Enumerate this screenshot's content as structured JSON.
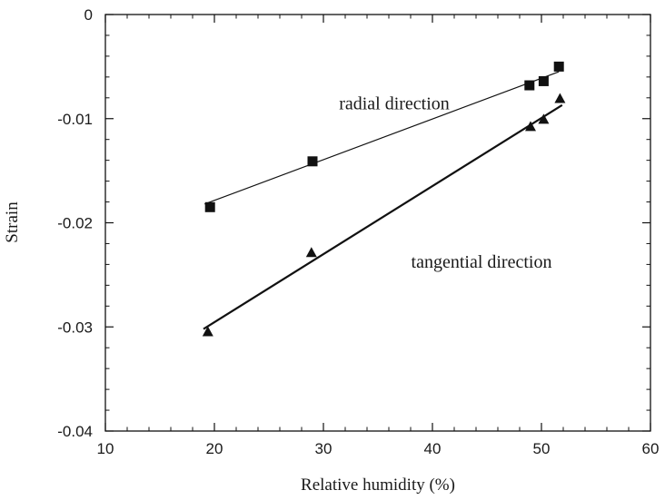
{
  "chart_data": {
    "type": "scatter",
    "title": "",
    "xlabel": "Relative humidity (%)",
    "ylabel": "Strain",
    "xlim": [
      10,
      60
    ],
    "ylim": [
      -0.04,
      0
    ],
    "x_ticks": [
      10,
      20,
      30,
      40,
      50,
      60
    ],
    "x_tick_labels": [
      "10",
      "20",
      "30",
      "40",
      "50",
      "60"
    ],
    "y_ticks": [
      0,
      -0.01,
      -0.02,
      -0.03,
      -0.04
    ],
    "y_tick_labels": [
      "0",
      "-0.01",
      "-0.02",
      "-0.03",
      "-0.04"
    ],
    "grid": false,
    "series": [
      {
        "marker": "square",
        "color": "#111111",
        "points": [
          {
            "x": 19.6,
            "y": -0.0185
          },
          {
            "x": 29.0,
            "y": -0.0141
          },
          {
            "x": 48.9,
            "y": -0.0068
          },
          {
            "x": 50.2,
            "y": -0.0064
          },
          {
            "x": 51.6,
            "y": -0.005
          }
        ],
        "fit_line": {
          "x": [
            19.1,
            51.6
          ],
          "y": [
            -0.0182,
            -0.0055
          ]
        }
      },
      {
        "marker": "triangle",
        "color": "#111111",
        "points": [
          {
            "x": 19.4,
            "y": -0.0305
          },
          {
            "x": 28.9,
            "y": -0.0229
          },
          {
            "x": 49.0,
            "y": -0.0108
          },
          {
            "x": 50.2,
            "y": -0.0101
          },
          {
            "x": 51.7,
            "y": -0.0081
          }
        ],
        "fit_line": {
          "x": [
            19.0,
            51.9
          ],
          "y": [
            -0.0302,
            -0.0087
          ]
        }
      }
    ],
    "annotations": [
      {
        "text": "radial direction",
        "x": 36.5,
        "y": -0.0091
      },
      {
        "text": "tangential direction",
        "x": 44.5,
        "y": -0.0243
      }
    ]
  }
}
